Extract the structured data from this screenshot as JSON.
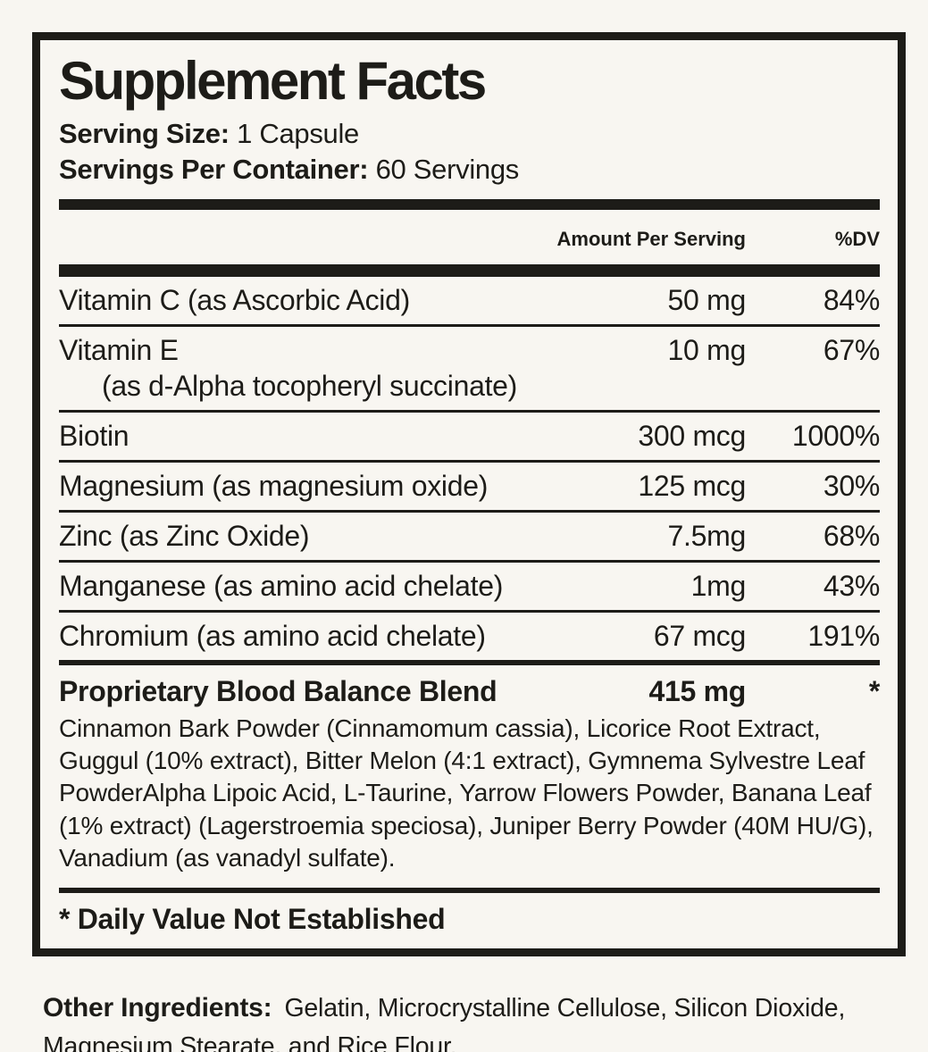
{
  "label": {
    "title": "Supplement Facts",
    "serving_size_label": "Serving Size:",
    "serving_size_value": "1 Capsule",
    "servings_per_container_label": "Servings Per Container:",
    "servings_per_container_value": "60 Servings",
    "columns": {
      "amount": "Amount Per Serving",
      "dv": "%DV"
    },
    "rows": [
      {
        "name": "Vitamin C (as Ascorbic Acid)",
        "amount": "50 mg",
        "dv": "84%"
      },
      {
        "name": "Vitamin E",
        "name_sub": "(as d-Alpha tocopheryl succinate)",
        "amount": "10 mg",
        "dv": "67%"
      },
      {
        "name": "Biotin",
        "amount": "300 mcg",
        "dv": "1000%"
      },
      {
        "name": "Magnesium (as magnesium oxide)",
        "amount": "125 mcg",
        "dv": "30%"
      },
      {
        "name": "Zinc (as Zinc Oxide)",
        "amount": "7.5mg",
        "dv": "68%"
      },
      {
        "name": "Manganese (as amino acid chelate)",
        "amount": "1mg",
        "dv": "43%"
      },
      {
        "name": "Chromium (as amino acid chelate)",
        "amount": "67 mcg",
        "dv": "191%"
      }
    ],
    "blend": {
      "name": "Proprietary Blood Balance Blend",
      "amount": "415 mg",
      "dv": "*",
      "description": "Cinnamon Bark Powder (Cinnamomum cassia), Licorice Root Extract, Guggul (10% extract), Bitter Melon (4:1 extract), Gymnema Sylvestre Leaf PowderAlpha Lipoic Acid, L-Taurine, Yarrow Flowers Powder, Banana Leaf (1% extract) (Lagerstroemia speciosa), Juniper Berry Powder (40M HU/G), Vanadium (as vanadyl sulfate)."
    },
    "footnote": "* Daily Value Not Established",
    "other_ingredients_label": "Other Ingredients:",
    "other_ingredients_value": "Gelatin, Microcrystalline Cellulose, Silicon Dioxide, Magnesium Stearate, and Rice Flour.",
    "colors": {
      "ink": "#1d1c18",
      "background": "#f8f6f1"
    }
  }
}
